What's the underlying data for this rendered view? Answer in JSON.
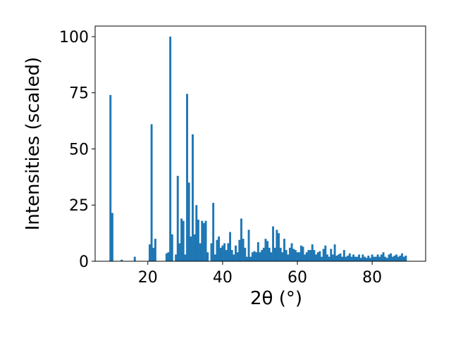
{
  "chart_data": {
    "type": "bar",
    "xlabel": "2θ (°)",
    "ylabel": "Intensities (scaled)",
    "color": "#1f77b4",
    "xlim": [
      5.9,
      94.3
    ],
    "ylim": [
      0,
      104.7
    ],
    "xticks": [
      20,
      40,
      60,
      80
    ],
    "yticks": [
      0,
      25,
      50,
      75,
      100
    ],
    "x": [
      10,
      10.5,
      13,
      16.5,
      20.5,
      21,
      21.5,
      22,
      25,
      25.5,
      26,
      26.5,
      27.5,
      28,
      28.5,
      29,
      29.5,
      30,
      30.5,
      31,
      31.5,
      32,
      32.5,
      33,
      33.5,
      34,
      34.5,
      35,
      35.5,
      36,
      37,
      37.5,
      38,
      38.5,
      39,
      39.5,
      40,
      40.5,
      41,
      41.5,
      42,
      42.5,
      43,
      43.5,
      44,
      44.5,
      45,
      45.5,
      46,
      46.5,
      47,
      47.5,
      48,
      48.5,
      49,
      49.5,
      50,
      50.5,
      51,
      51.5,
      52,
      52.5,
      53,
      53.5,
      54,
      54.5,
      55,
      55.5,
      56,
      56.5,
      57,
      57.5,
      58,
      58.5,
      59,
      59.5,
      60,
      60.5,
      61,
      61.5,
      62,
      62.5,
      63,
      63.5,
      64,
      64.5,
      65,
      65.5,
      66,
      66.5,
      67,
      67.5,
      68,
      68.5,
      69,
      69.5,
      70,
      70.5,
      71,
      71.5,
      72,
      72.5,
      73,
      73.5,
      74,
      74.5,
      75,
      75.5,
      76,
      76.5,
      77,
      77.5,
      78,
      78.5,
      79,
      79.5,
      80,
      80.5,
      81,
      81.5,
      82,
      82.5,
      83,
      83.5,
      84,
      84.5,
      85,
      85.5,
      86,
      86.5,
      87,
      87.5,
      88,
      88.5,
      89
    ],
    "values": [
      74,
      21.5,
      0.7,
      2,
      7.5,
      61,
      6,
      10,
      3.5,
      4,
      100,
      12,
      3,
      38,
      8,
      19,
      18,
      3,
      74.5,
      35,
      11,
      56.5,
      12,
      25,
      18.5,
      8,
      18,
      17,
      18,
      4,
      8,
      26,
      3,
      9.5,
      11,
      6,
      7,
      8,
      5,
      8,
      13,
      5,
      3,
      7,
      4,
      9.5,
      19,
      10,
      6,
      2,
      14,
      2,
      4,
      4.5,
      4,
      8.5,
      4,
      5,
      6,
      10,
      9,
      6,
      4,
      15.5,
      6,
      14,
      12.5,
      6,
      4,
      10,
      5,
      3,
      6,
      8,
      5.5,
      5,
      4,
      4,
      7,
      6.5,
      3,
      4,
      5,
      5,
      7.5,
      5,
      3,
      4,
      4.5,
      2,
      5.5,
      7,
      3,
      2,
      5.5,
      3,
      7.5,
      2.5,
      3,
      3.5,
      2,
      5,
      2,
      2.5,
      3.5,
      2,
      3,
      2,
      2,
      3,
      1.5,
      3,
      2,
      1.5,
      2.5,
      1.5,
      3,
      2,
      2,
      3,
      2,
      3,
      4,
      2,
      1.5,
      3,
      3.5,
      2,
      2.5,
      3,
      2,
      2.5,
      3.5,
      2,
      2.5
    ]
  }
}
